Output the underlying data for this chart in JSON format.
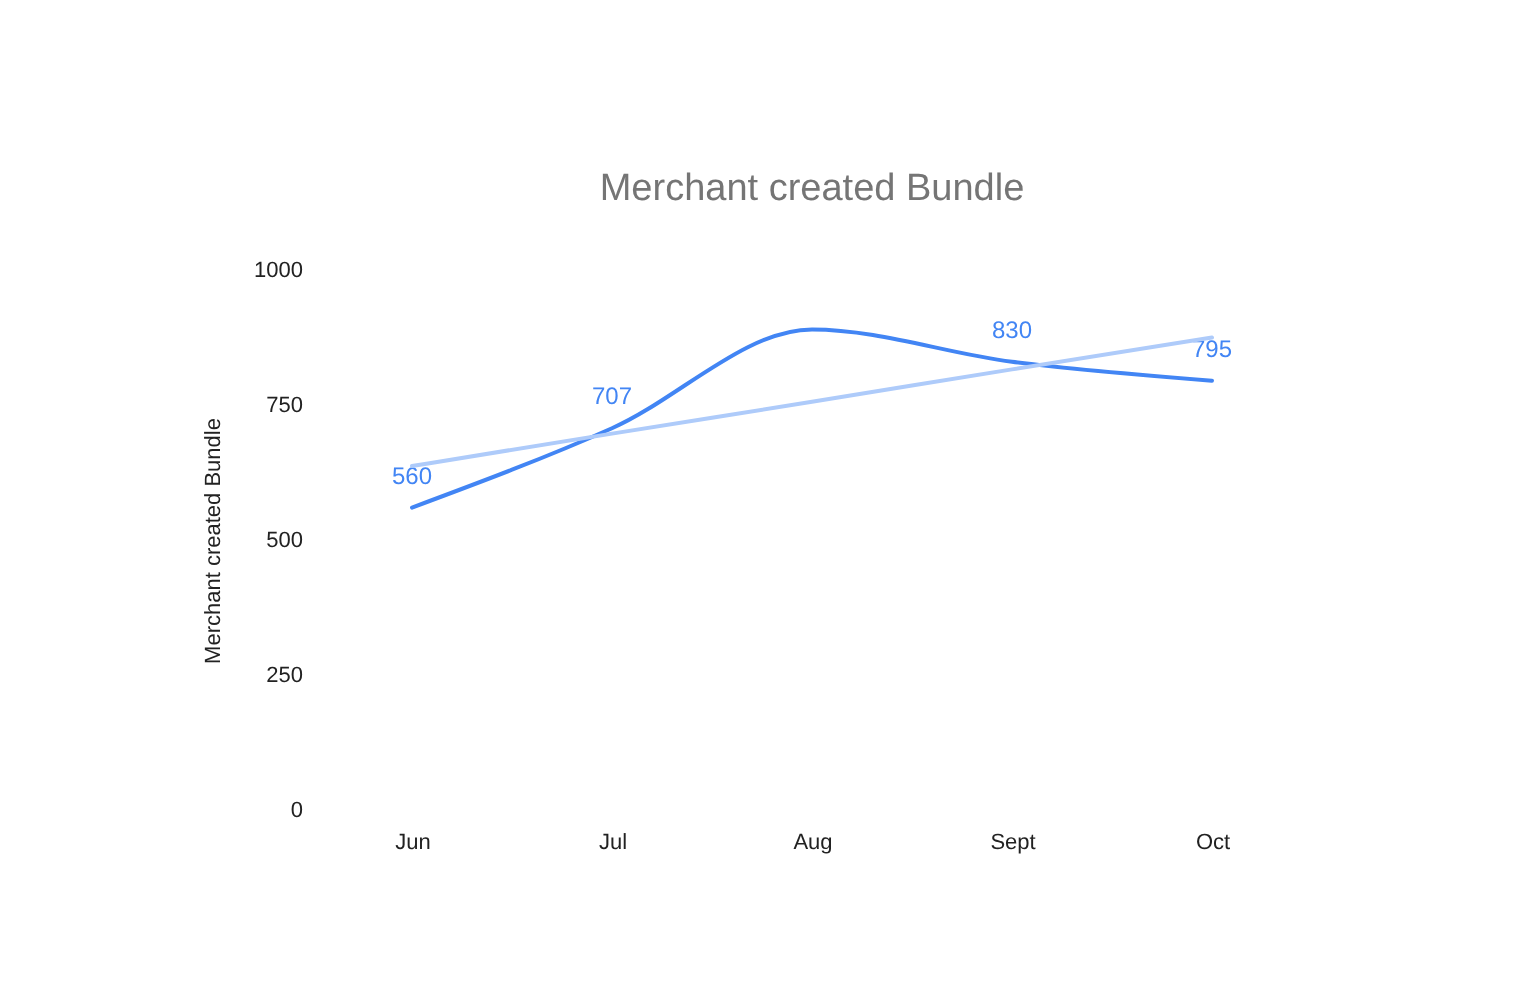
{
  "chart_data": {
    "type": "line",
    "title": "Merchant created Bundle",
    "ylabel": "Merchant created Bundle",
    "categories": [
      "Jun",
      "Jul",
      "Aug",
      "Sept",
      "Oct"
    ],
    "ylim": [
      0,
      1000
    ],
    "yticks": [
      0,
      250,
      500,
      750,
      1000
    ],
    "grid": false,
    "marker": "none",
    "line_style": "solid",
    "series": [
      {
        "color": "#4285f4",
        "values": [
          560,
          707,
          890,
          830,
          795
        ],
        "value_labels": [
          "560",
          "707",
          null,
          "830",
          "795"
        ]
      },
      {
        "type": "line",
        "color": "#aecbfa",
        "values": [
          637,
          697,
          756,
          816,
          875
        ]
      }
    ]
  }
}
